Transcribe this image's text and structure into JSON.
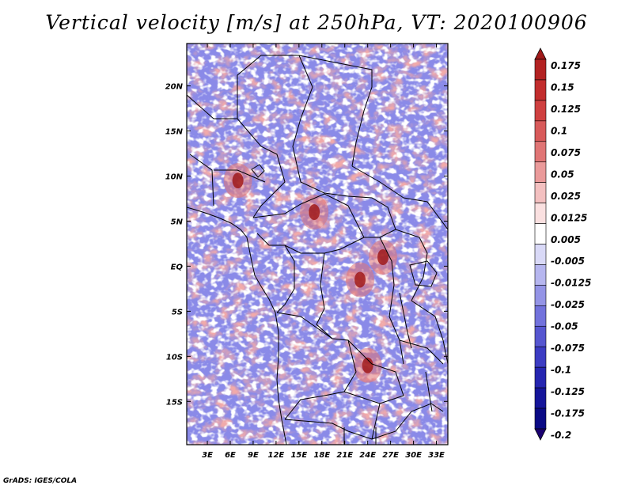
{
  "chart_data": {
    "type": "heatmap",
    "title": "Vertical velocity [m/s] at 250hPa, VT: 2020100906",
    "variable": "Vertical velocity",
    "units": "m/s",
    "level": "250hPa",
    "valid_time": "2020100906",
    "xlabel": "",
    "ylabel": "",
    "x_tick_labels": [
      "3E",
      "6E",
      "9E",
      "12E",
      "15E",
      "18E",
      "21E",
      "24E",
      "27E",
      "30E",
      "33E"
    ],
    "x_tick_values": [
      3,
      6,
      9,
      12,
      15,
      18,
      21,
      24,
      27,
      30,
      33
    ],
    "y_tick_labels": [
      "20N",
      "15N",
      "10N",
      "5N",
      "EQ",
      "5S",
      "10S",
      "15S"
    ],
    "y_tick_values": [
      20,
      15,
      10,
      5,
      0,
      -5,
      -10,
      -15
    ],
    "xlim": [
      0.3,
      34.5
    ],
    "ylim": [
      -19.8,
      24.7
    ],
    "colorbar": {
      "levels": [
        "0.175",
        "0.15",
        "0.125",
        "0.1",
        "0.075",
        "0.05",
        "0.025",
        "0.0125",
        "0.005",
        "-0.005",
        "-0.0125",
        "-0.025",
        "-0.05",
        "-0.075",
        "-0.1",
        "-0.125",
        "-0.175",
        "-0.2"
      ],
      "colors": [
        "#a01a1a",
        "#b32222",
        "#c22d2d",
        "#cf4040",
        "#d85a5a",
        "#e07575",
        "#ea9a9a",
        "#f3c0c0",
        "#fae0e0",
        "#ffffff",
        "#d9d9f7",
        "#b6b6ef",
        "#9494e6",
        "#7272dc",
        "#5656d0",
        "#3c3cc3",
        "#2525b0",
        "#15159a",
        "#0a0a85",
        "#1a0070"
      ]
    },
    "notable_features": [
      {
        "name": "strong ascent core",
        "lon": 17,
        "lat": 6,
        "value": 0.15
      },
      {
        "name": "strong ascent core",
        "lon": 7,
        "lat": 9.5,
        "value": 0.125
      },
      {
        "name": "strong ascent core",
        "lon": 26,
        "lat": 1,
        "value": 0.15
      },
      {
        "name": "strong ascent core",
        "lon": 24,
        "lat": -11,
        "value": 0.125
      },
      {
        "name": "strong ascent core",
        "lon": 23,
        "lat": -1.5,
        "value": 0.125
      }
    ]
  },
  "credit": "GrADS: IGES/COLA"
}
